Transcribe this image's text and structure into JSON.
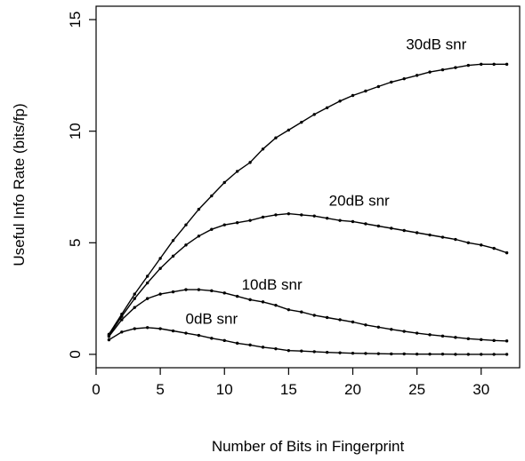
{
  "chart_data": {
    "type": "line",
    "title": "",
    "xlabel": "Number of Bits in Fingerprint",
    "ylabel": "Useful Info Rate (bits/fp)",
    "xlim": [
      0,
      33
    ],
    "ylim": [
      -0.6,
      15.6
    ],
    "x_ticks": [
      0,
      5,
      10,
      15,
      20,
      25,
      30
    ],
    "y_ticks": [
      0,
      5,
      10,
      15
    ],
    "x_tick_labels": [
      "0",
      "5",
      "10",
      "15",
      "20",
      "25",
      "30"
    ],
    "y_tick_labels": [
      "0",
      "5",
      "10",
      "15"
    ],
    "grid": false,
    "legend": "none",
    "colors": {
      "line": "#000000",
      "axis": "#000000"
    },
    "x": [
      1,
      2,
      3,
      4,
      5,
      6,
      7,
      8,
      9,
      10,
      11,
      12,
      13,
      14,
      15,
      16,
      17,
      18,
      19,
      20,
      21,
      22,
      23,
      24,
      25,
      26,
      27,
      28,
      29,
      30,
      31,
      32
    ],
    "series": [
      {
        "name": "30dB snr",
        "values": [
          0.9,
          1.8,
          2.7,
          3.5,
          4.3,
          5.1,
          5.8,
          6.5,
          7.1,
          7.7,
          8.2,
          8.6,
          9.2,
          9.7,
          10.05,
          10.4,
          10.75,
          11.05,
          11.35,
          11.6,
          11.8,
          12.0,
          12.2,
          12.35,
          12.5,
          12.65,
          12.75,
          12.85,
          12.95,
          13.0,
          13.0,
          13.0
        ]
      },
      {
        "name": "20dB snr",
        "values": [
          0.85,
          1.7,
          2.5,
          3.2,
          3.85,
          4.4,
          4.9,
          5.3,
          5.6,
          5.8,
          5.9,
          6.0,
          6.15,
          6.25,
          6.3,
          6.25,
          6.2,
          6.1,
          6.0,
          5.95,
          5.85,
          5.75,
          5.65,
          5.55,
          5.45,
          5.35,
          5.25,
          5.15,
          5.0,
          4.9,
          4.75,
          4.55
        ]
      },
      {
        "name": "10dB snr",
        "values": [
          0.8,
          1.55,
          2.1,
          2.5,
          2.7,
          2.8,
          2.9,
          2.9,
          2.85,
          2.75,
          2.6,
          2.45,
          2.35,
          2.2,
          2.0,
          1.9,
          1.75,
          1.65,
          1.55,
          1.45,
          1.32,
          1.22,
          1.12,
          1.03,
          0.95,
          0.88,
          0.82,
          0.76,
          0.7,
          0.66,
          0.62,
          0.6
        ]
      },
      {
        "name": "0dB snr",
        "values": [
          0.65,
          1.0,
          1.15,
          1.2,
          1.15,
          1.05,
          0.95,
          0.85,
          0.72,
          0.62,
          0.5,
          0.42,
          0.32,
          0.25,
          0.17,
          0.15,
          0.12,
          0.09,
          0.07,
          0.05,
          0.04,
          0.03,
          0.02,
          0.02,
          0.01,
          0.01,
          0.01,
          0.0,
          0.0,
          0.0,
          0.0,
          0.0
        ]
      }
    ],
    "annotations": [
      {
        "text": "30dB snr",
        "x": 26.5,
        "y": 13.9
      },
      {
        "text": "20dB snr",
        "x": 20.5,
        "y": 6.9
      },
      {
        "text": "10dB snr",
        "x": 13.7,
        "y": 3.15
      },
      {
        "text": "0dB snr",
        "x": 9.0,
        "y": 1.6
      }
    ]
  }
}
